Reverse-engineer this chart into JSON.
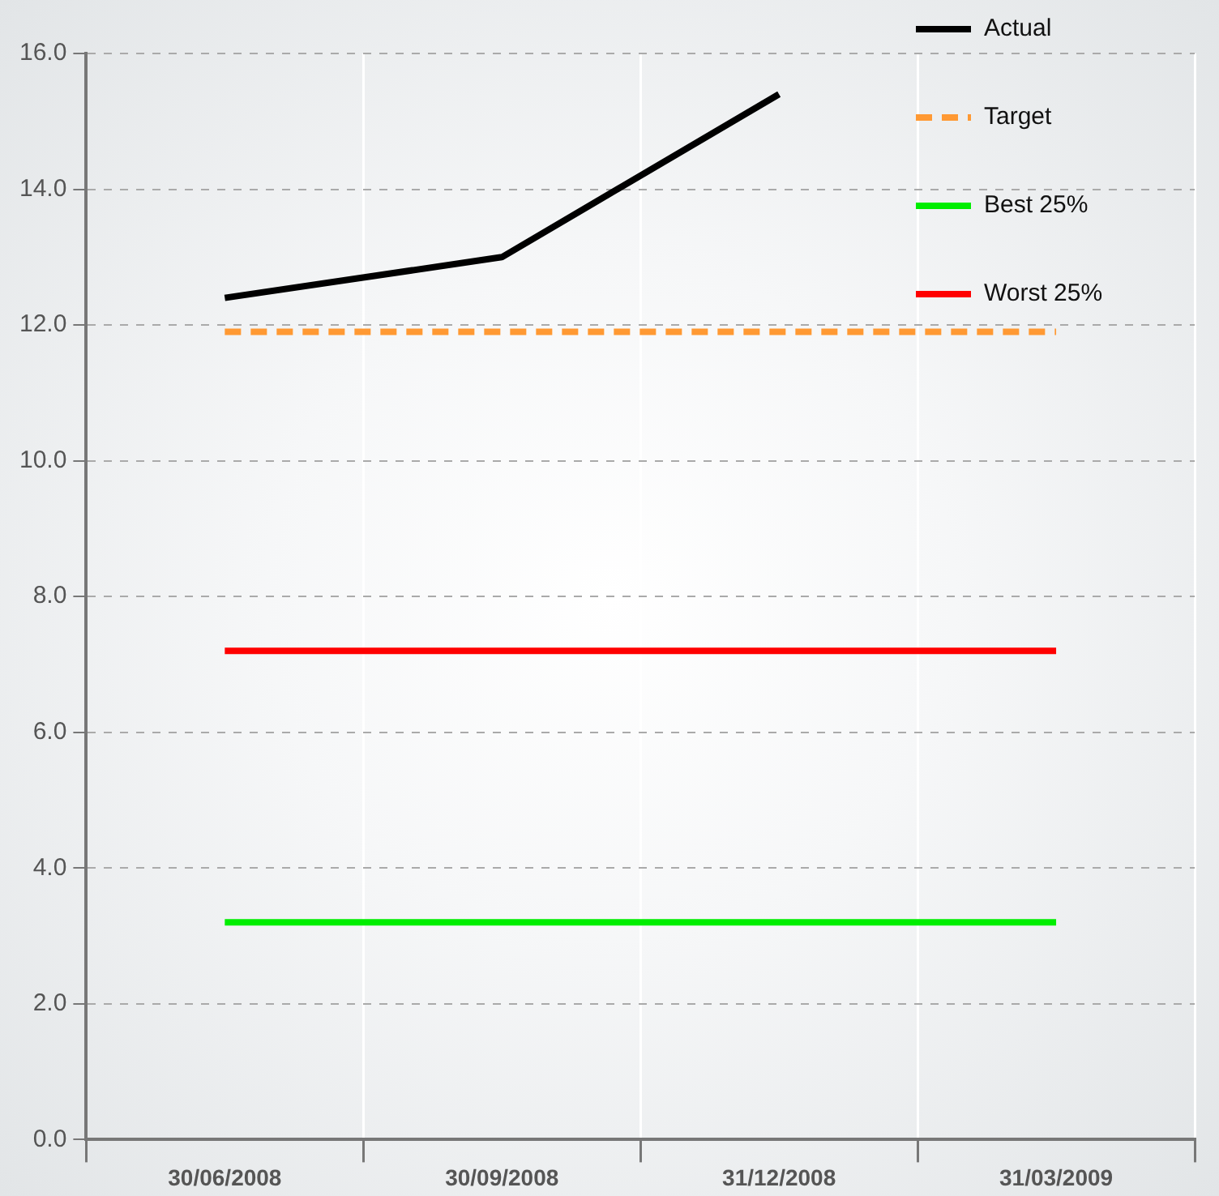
{
  "chart_data": {
    "type": "line",
    "categories": [
      "30/06/2008",
      "30/09/2008",
      "31/12/2008",
      "31/03/2009"
    ],
    "series": [
      {
        "name": "Actual",
        "color": "#000000",
        "values": [
          12.4,
          13.0,
          15.4,
          null
        ]
      },
      {
        "name": "Target",
        "color": "#ff9933",
        "values": [
          11.9,
          11.9,
          11.9,
          11.9
        ],
        "line_style": "dashed"
      },
      {
        "name": "Best 25%",
        "color": "#00ee00",
        "values": [
          3.2,
          3.2,
          3.2,
          3.2
        ]
      },
      {
        "name": "Worst 25%",
        "color": "#ff0000",
        "values": [
          7.2,
          7.2,
          7.2,
          7.2
        ]
      }
    ],
    "ylim": [
      0,
      16
    ],
    "yticks": [
      {
        "value": 0,
        "label": "0.0"
      },
      {
        "value": 2,
        "label": "2.0"
      },
      {
        "value": 4,
        "label": "4.0"
      },
      {
        "value": 6,
        "label": "6.0"
      },
      {
        "value": 8,
        "label": "8.0"
      },
      {
        "value": 10,
        "label": "10.0"
      },
      {
        "value": 12,
        "label": "12.0"
      },
      {
        "value": 14,
        "label": "14.0"
      },
      {
        "value": 16,
        "label": "16.0"
      }
    ],
    "grid": true,
    "legend": "top right",
    "marker": "none",
    "line_style": "solid"
  }
}
